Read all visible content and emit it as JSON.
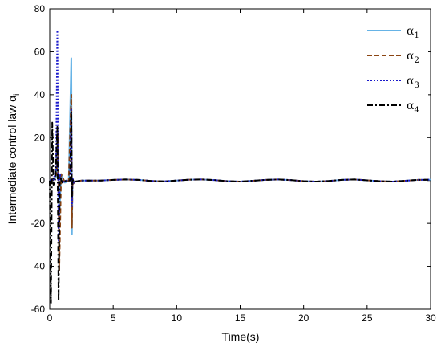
{
  "chart_data": {
    "type": "line",
    "xlabel": "Time(s)",
    "ylabel": "Intermediate control law α",
    "ylabel_sub": "i",
    "xlim": [
      0,
      30
    ],
    "ylim": [
      -60,
      80
    ],
    "xticks": [
      0,
      5,
      10,
      15,
      20,
      25,
      30
    ],
    "yticks": [
      -60,
      -40,
      -20,
      0,
      20,
      40,
      60,
      80
    ],
    "grid": false,
    "legend_position": "top-right",
    "series": [
      {
        "name": "α",
        "sub": "1",
        "color": "#66b3e6",
        "dash": "",
        "x": [
          0,
          0.3,
          0.55,
          0.65,
          0.75,
          0.9,
          1.2,
          1.5,
          1.7,
          1.75,
          1.8,
          1.85,
          2.0,
          2.5,
          3,
          4,
          5,
          6,
          7,
          8,
          9,
          10,
          11,
          12,
          13,
          14,
          15,
          16,
          17,
          18,
          19,
          20,
          21,
          22,
          23,
          24,
          25,
          26,
          27,
          28,
          29,
          30
        ],
        "y": [
          0,
          0.5,
          2,
          18,
          -18,
          3,
          -1,
          0,
          57,
          -25,
          1,
          -1.5,
          -0.5,
          0,
          0,
          0,
          0.3,
          0.5,
          0.3,
          -0.2,
          -0.4,
          0,
          0.4,
          0.5,
          0.2,
          -0.3,
          -0.5,
          -0.1,
          0.3,
          0.5,
          0.2,
          -0.3,
          -0.5,
          -0.2,
          0.3,
          0.5,
          0.1,
          -0.3,
          -0.5,
          -0.1,
          0.3,
          0.4
        ]
      },
      {
        "name": "α",
        "sub": "2",
        "color": "#8b4513",
        "dash": "6,3",
        "x": [
          0,
          0.3,
          0.55,
          0.65,
          0.75,
          0.9,
          1.2,
          1.5,
          1.7,
          1.75,
          1.8,
          1.85,
          2.0,
          2.5,
          3,
          4,
          5,
          6,
          7,
          8,
          9,
          10,
          11,
          12,
          13,
          14,
          15,
          16,
          17,
          18,
          19,
          20,
          21,
          22,
          23,
          24,
          25,
          26,
          27,
          28,
          29,
          30
        ],
        "y": [
          0,
          0.5,
          3,
          22,
          -42,
          3,
          -1,
          0,
          40,
          -22,
          1,
          -1.5,
          -0.5,
          0,
          0,
          0,
          0.3,
          0.5,
          0.3,
          -0.2,
          -0.4,
          0,
          0.4,
          0.5,
          0.2,
          -0.3,
          -0.5,
          -0.1,
          0.3,
          0.5,
          0.2,
          -0.3,
          -0.5,
          -0.2,
          0.3,
          0.5,
          0.1,
          -0.3,
          -0.5,
          -0.1,
          0.3,
          0.4
        ]
      },
      {
        "name": "α",
        "sub": "3",
        "color": "#1a1acc",
        "dash": "2,2",
        "x": [
          0,
          0.3,
          0.5,
          0.6,
          0.7,
          0.8,
          1.0,
          1.3,
          1.6,
          1.7,
          1.75,
          1.8,
          1.9,
          2.0,
          2.5,
          3,
          4,
          5,
          6,
          7,
          8,
          9,
          10,
          11,
          12,
          13,
          14,
          15,
          16,
          17,
          18,
          19,
          20,
          21,
          22,
          23,
          24,
          25,
          26,
          27,
          28,
          29,
          30
        ],
        "y": [
          0,
          0.5,
          5,
          70,
          -28,
          3,
          -1,
          0,
          0,
          33,
          -12,
          1,
          -1,
          -0.5,
          0,
          0,
          0,
          0.3,
          0.5,
          0.3,
          -0.2,
          -0.4,
          0,
          0.4,
          0.5,
          0.2,
          -0.3,
          -0.5,
          -0.1,
          0.3,
          0.5,
          0.2,
          -0.3,
          -0.5,
          -0.2,
          0.3,
          0.5,
          0.1,
          -0.3,
          -0.5,
          -0.1,
          0.3,
          0.4
        ]
      },
      {
        "name": "α",
        "sub": "4",
        "color": "#000000",
        "dash": "7,3,2,3",
        "x": [
          0,
          0.1,
          0.2,
          0.3,
          0.45,
          0.6,
          0.7,
          0.8,
          1.0,
          1.3,
          1.6,
          1.7,
          1.75,
          1.8,
          1.9,
          2.0,
          2.5,
          3,
          4,
          5,
          6,
          7,
          8,
          9,
          10,
          11,
          12,
          13,
          14,
          15,
          16,
          17,
          18,
          19,
          20,
          21,
          22,
          23,
          24,
          25,
          26,
          27,
          28,
          29,
          30
        ],
        "y": [
          0,
          -57,
          27,
          -2,
          1,
          25,
          -56,
          2,
          -1,
          0,
          0,
          32,
          -8,
          1,
          -1,
          -0.5,
          0,
          0,
          0,
          0.3,
          0.5,
          0.3,
          -0.2,
          -0.4,
          0,
          0.4,
          0.5,
          0.2,
          -0.3,
          -0.5,
          -0.1,
          0.3,
          0.5,
          0.2,
          -0.3,
          -0.5,
          -0.2,
          0.3,
          0.5,
          0.1,
          -0.3,
          -0.5,
          -0.1,
          0.3,
          0.4
        ]
      }
    ]
  }
}
